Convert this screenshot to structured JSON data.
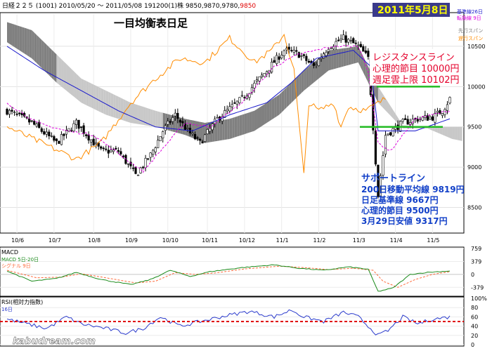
{
  "header": {
    "info": "日経２２５ (1001) 2010/05/20 ～ 2011/05/08 191200(1)株 9850,9870,9780,",
    "last": "9850",
    "title": "一目均衡表日足",
    "date": "2011年5月8日",
    "legend_kijun": "基準線26日",
    "legend_tenkan": "転換線 9日",
    "legend_cloud_a": "先行スパン",
    "legend_cloud_b": "遅行スパン"
  },
  "annotations": {
    "resistance": [
      "レジスタンスライン",
      "心理的節目 10000円",
      "週足雲上限 10102円"
    ],
    "support": [
      "サポートライン",
      "200日移動平均線 9819円",
      "日足基準線 9667円",
      "心理的節目 9500円",
      "3月29日安値 9317円"
    ]
  },
  "watermark": "kabudream.com",
  "colors": {
    "date": "#ffff00",
    "date_bg": "#3a3a8a",
    "resistance": "#e4002b",
    "support": "#1240c8",
    "level_line": "#22bb22",
    "kijun": "#1a1acc",
    "tenkan": "#dd00dd",
    "chikou": "#ff8c00",
    "cloud": "#808080",
    "cloud_light": "#c8c8c8",
    "macd": "#1a8a1a",
    "signal": "#ff6a3a",
    "rsi": "#2a3acc",
    "rsi_level": "#e00000"
  },
  "chart_data": [
    {
      "type": "candlestick",
      "title": "一目均衡表日足",
      "x_ticks": [
        "10/6",
        "10/7",
        "10/8",
        "10/9",
        "10/10",
        "10/11",
        "10/12",
        "11/1",
        "11/2",
        "11/3",
        "11/4",
        "11/5"
      ],
      "y_ticks": [
        8500,
        9000,
        9500,
        10000,
        10500
      ],
      "ylim": [
        8200,
        10900
      ],
      "close_keyframes": [
        [
          0,
          9700
        ],
        [
          10,
          9550
        ],
        [
          20,
          9300
        ],
        [
          28,
          9550
        ],
        [
          38,
          9200
        ],
        [
          45,
          9200
        ],
        [
          52,
          8900
        ],
        [
          58,
          9150
        ],
        [
          63,
          9450
        ],
        [
          68,
          9650
        ],
        [
          73,
          9450
        ],
        [
          78,
          9300
        ],
        [
          85,
          9600
        ],
        [
          95,
          9850
        ],
        [
          105,
          10200
        ],
        [
          112,
          10450
        ],
        [
          118,
          10400
        ],
        [
          124,
          10250
        ],
        [
          130,
          10500
        ],
        [
          136,
          10600
        ],
        [
          142,
          10500
        ],
        [
          146,
          10350
        ],
        [
          148,
          9500
        ],
        [
          150,
          8650
        ],
        [
          153,
          9400
        ],
        [
          160,
          9550
        ],
        [
          166,
          9600
        ],
        [
          172,
          9620
        ],
        [
          176,
          9700
        ],
        [
          179,
          9850
        ]
      ],
      "kijun_keyframes": [
        [
          0,
          10500
        ],
        [
          15,
          10200
        ],
        [
          30,
          9950
        ],
        [
          45,
          9700
        ],
        [
          60,
          9500
        ],
        [
          75,
          9450
        ],
        [
          90,
          9650
        ],
        [
          105,
          9800
        ],
        [
          115,
          10050
        ],
        [
          125,
          10350
        ],
        [
          140,
          10450
        ],
        [
          147,
          10250
        ],
        [
          150,
          9450
        ],
        [
          165,
          9450
        ],
        [
          179,
          9600
        ]
      ],
      "tenkan_keyframes": [
        [
          0,
          9800
        ],
        [
          12,
          9550
        ],
        [
          24,
          9450
        ],
        [
          35,
          9400
        ],
        [
          48,
          9100
        ],
        [
          55,
          8950
        ],
        [
          62,
          9200
        ],
        [
          72,
          9550
        ],
        [
          82,
          9500
        ],
        [
          95,
          9800
        ],
        [
          108,
          10250
        ],
        [
          118,
          10400
        ],
        [
          132,
          10500
        ],
        [
          142,
          10500
        ],
        [
          146,
          10200
        ],
        [
          150,
          9300
        ],
        [
          155,
          9200
        ],
        [
          165,
          9600
        ],
        [
          179,
          9700
        ]
      ],
      "chikou_keyframes": [
        [
          0,
          9500
        ],
        [
          14,
          9300
        ],
        [
          28,
          9100
        ],
        [
          38,
          9300
        ],
        [
          50,
          9800
        ],
        [
          60,
          10100
        ],
        [
          70,
          10350
        ],
        [
          80,
          10300
        ],
        [
          90,
          10600
        ],
        [
          100,
          10300
        ],
        [
          107,
          10450
        ],
        [
          112,
          10650
        ],
        [
          116,
          10200
        ],
        [
          120,
          8900
        ],
        [
          122,
          9800
        ],
        [
          126,
          9700
        ],
        [
          132,
          9800
        ],
        [
          135,
          9500
        ],
        [
          138,
          9750
        ],
        [
          145,
          9700
        ],
        [
          153,
          9850
        ]
      ],
      "cloud_upper_keyframes": [
        [
          0,
          10800
        ],
        [
          10,
          10700
        ],
        [
          20,
          10400
        ],
        [
          30,
          10100
        ],
        [
          40,
          9950
        ],
        [
          50,
          9800
        ],
        [
          60,
          9700
        ],
        [
          72,
          9600
        ],
        [
          80,
          9550
        ],
        [
          90,
          9600
        ],
        [
          100,
          9700
        ],
        [
          110,
          9900
        ],
        [
          120,
          10200
        ],
        [
          130,
          10450
        ],
        [
          142,
          10500
        ],
        [
          150,
          10000
        ],
        [
          160,
          9520
        ],
        [
          170,
          9500
        ],
        [
          185,
          9500
        ],
        [
          195,
          9650
        ]
      ],
      "cloud_lower_keyframes": [
        [
          0,
          10550
        ],
        [
          10,
          10350
        ],
        [
          20,
          10050
        ],
        [
          30,
          9800
        ],
        [
          40,
          9650
        ],
        [
          50,
          9550
        ],
        [
          60,
          9500
        ],
        [
          72,
          9400
        ],
        [
          80,
          9300
        ],
        [
          90,
          9350
        ],
        [
          100,
          9450
        ],
        [
          110,
          9650
        ],
        [
          120,
          9950
        ],
        [
          130,
          10200
        ],
        [
          142,
          10300
        ],
        [
          150,
          9800
        ],
        [
          160,
          9480
        ],
        [
          170,
          9480
        ],
        [
          180,
          9350
        ],
        [
          188,
          9300
        ],
        [
          195,
          9550
        ]
      ],
      "resistance_level": 10000,
      "support_level": 9500,
      "last_close": 9850
    },
    {
      "type": "line",
      "title": "MACD",
      "series": [
        {
          "name": "MACD 5日-20日"
        },
        {
          "name": "シグナル 9日"
        }
      ],
      "y_ticks": [
        759,
        379,
        0,
        -379
      ],
      "ylim": [
        -600,
        759
      ],
      "macd_keyframes": [
        [
          0,
          100
        ],
        [
          10,
          -200
        ],
        [
          20,
          -120
        ],
        [
          28,
          60
        ],
        [
          38,
          -150
        ],
        [
          50,
          -300
        ],
        [
          58,
          -150
        ],
        [
          66,
          120
        ],
        [
          74,
          -60
        ],
        [
          82,
          80
        ],
        [
          95,
          200
        ],
        [
          108,
          280
        ],
        [
          118,
          180
        ],
        [
          128,
          120
        ],
        [
          138,
          220
        ],
        [
          146,
          150
        ],
        [
          150,
          -500
        ],
        [
          156,
          -400
        ],
        [
          163,
          0
        ],
        [
          170,
          60
        ],
        [
          179,
          100
        ]
      ],
      "signal_keyframes": [
        [
          0,
          120
        ],
        [
          12,
          -100
        ],
        [
          22,
          -80
        ],
        [
          30,
          20
        ],
        [
          40,
          -100
        ],
        [
          52,
          -250
        ],
        [
          60,
          -200
        ],
        [
          68,
          50
        ],
        [
          76,
          0
        ],
        [
          84,
          40
        ],
        [
          96,
          160
        ],
        [
          110,
          240
        ],
        [
          120,
          200
        ],
        [
          130,
          140
        ],
        [
          140,
          180
        ],
        [
          148,
          120
        ],
        [
          152,
          -200
        ],
        [
          158,
          -380
        ],
        [
          165,
          -150
        ],
        [
          172,
          0
        ],
        [
          179,
          80
        ]
      ]
    },
    {
      "type": "line",
      "title": "RSI(相対力指数)",
      "series": [
        {
          "name": "16日"
        }
      ],
      "y_ticks": [
        "100%",
        "80",
        "60",
        "40",
        "20",
        "0"
      ],
      "ylim": [
        0,
        100
      ],
      "rsi_keyframes": [
        [
          0,
          55
        ],
        [
          8,
          45
        ],
        [
          16,
          35
        ],
        [
          24,
          60
        ],
        [
          30,
          45
        ],
        [
          40,
          35
        ],
        [
          48,
          25
        ],
        [
          55,
          35
        ],
        [
          62,
          60
        ],
        [
          70,
          40
        ],
        [
          78,
          50
        ],
        [
          88,
          62
        ],
        [
          98,
          72
        ],
        [
          108,
          60
        ],
        [
          115,
          75
        ],
        [
          120,
          60
        ],
        [
          128,
          50
        ],
        [
          136,
          70
        ],
        [
          142,
          60
        ],
        [
          146,
          40
        ],
        [
          150,
          20
        ],
        [
          154,
          30
        ],
        [
          160,
          60
        ],
        [
          166,
          45
        ],
        [
          172,
          55
        ],
        [
          179,
          60
        ]
      ],
      "reference_level": 50
    }
  ]
}
